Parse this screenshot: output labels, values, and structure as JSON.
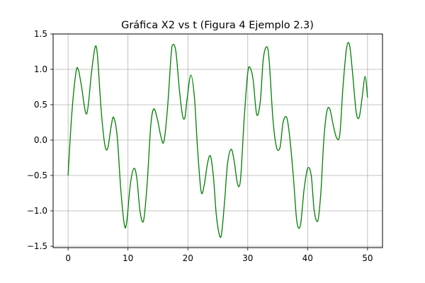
{
  "chart_data": {
    "type": "line",
    "title": "Gráfica X2 vs t (Figura 4 Ejemplo 2.3)",
    "xlabel": "",
    "ylabel": "",
    "xlim": [
      -2.5,
      52.5
    ],
    "ylim": [
      -1.52,
      1.5
    ],
    "xticks": [
      0,
      10,
      20,
      30,
      40,
      50
    ],
    "xtick_labels": [
      "0",
      "10",
      "20",
      "30",
      "40",
      "50"
    ],
    "yticks": [
      1.5,
      1.0,
      0.5,
      0.0,
      -0.5,
      -1.0,
      -1.5
    ],
    "ytick_labels": [
      "1.5",
      "1.0",
      "0.5",
      "0.0",
      "−0.5",
      "−1.0",
      "−1.5"
    ],
    "grid": true,
    "series": [
      {
        "color": "#008000",
        "x": [
          0,
          0.6,
          1.3,
          1.7,
          2.2,
          3.1,
          3.9,
          4.5,
          4.9,
          5.5,
          6.1,
          6.6,
          7.2,
          7.6,
          8.2,
          8.8,
          9.4,
          9.8,
          10.4,
          11.0,
          11.5,
          12.0,
          12.6,
          13.2,
          13.8,
          14.3,
          14.9,
          15.5,
          16.0,
          16.6,
          17.2,
          17.5,
          18.0,
          18.6,
          19.1,
          19.5,
          19.9,
          20.5,
          21.1,
          21.6,
          22.2,
          22.7,
          23.3,
          23.8,
          24.3,
          24.8,
          25.5,
          26.1,
          26.6,
          27.2,
          27.7,
          28.3,
          28.8,
          29.4,
          30.0,
          30.4,
          30.9,
          31.5,
          32.1,
          32.6,
          33.2,
          33.6,
          34.2,
          34.8,
          35.4,
          35.9,
          36.5,
          37.0,
          37.6,
          38.2,
          38.8,
          39.4,
          40.0,
          40.6,
          41.1,
          41.7,
          42.2,
          42.7,
          43.2,
          43.7,
          44.3,
          44.9,
          45.4,
          45.9,
          46.5,
          47.0,
          47.5,
          48.1,
          48.6,
          49.1,
          49.6,
          50.0
        ],
        "y": [
          -0.5,
          0.35,
          0.95,
          1.0,
          0.78,
          0.37,
          0.95,
          1.31,
          1.2,
          0.45,
          -0.05,
          -0.12,
          0.2,
          0.32,
          0.05,
          -0.7,
          -1.2,
          -1.15,
          -0.62,
          -0.4,
          -0.55,
          -1.0,
          -1.14,
          -0.62,
          0.2,
          0.44,
          0.3,
          0.05,
          -0.02,
          0.45,
          1.2,
          1.35,
          1.25,
          0.7,
          0.35,
          0.32,
          0.6,
          0.92,
          0.6,
          -0.1,
          -0.72,
          -0.65,
          -0.32,
          -0.23,
          -0.55,
          -1.1,
          -1.37,
          -0.9,
          -0.35,
          -0.13,
          -0.28,
          -0.62,
          -0.55,
          0.3,
          0.95,
          1.02,
          0.85,
          0.36,
          0.55,
          1.15,
          1.32,
          1.1,
          0.3,
          -0.1,
          -0.1,
          0.25,
          0.32,
          0.05,
          -0.5,
          -1.15,
          -1.2,
          -0.7,
          -0.4,
          -0.5,
          -1.0,
          -1.14,
          -0.75,
          0.0,
          0.4,
          0.44,
          0.2,
          0.02,
          0.1,
          0.75,
          1.3,
          1.34,
          0.95,
          0.4,
          0.32,
          0.6,
          0.9,
          0.6
        ]
      }
    ]
  }
}
